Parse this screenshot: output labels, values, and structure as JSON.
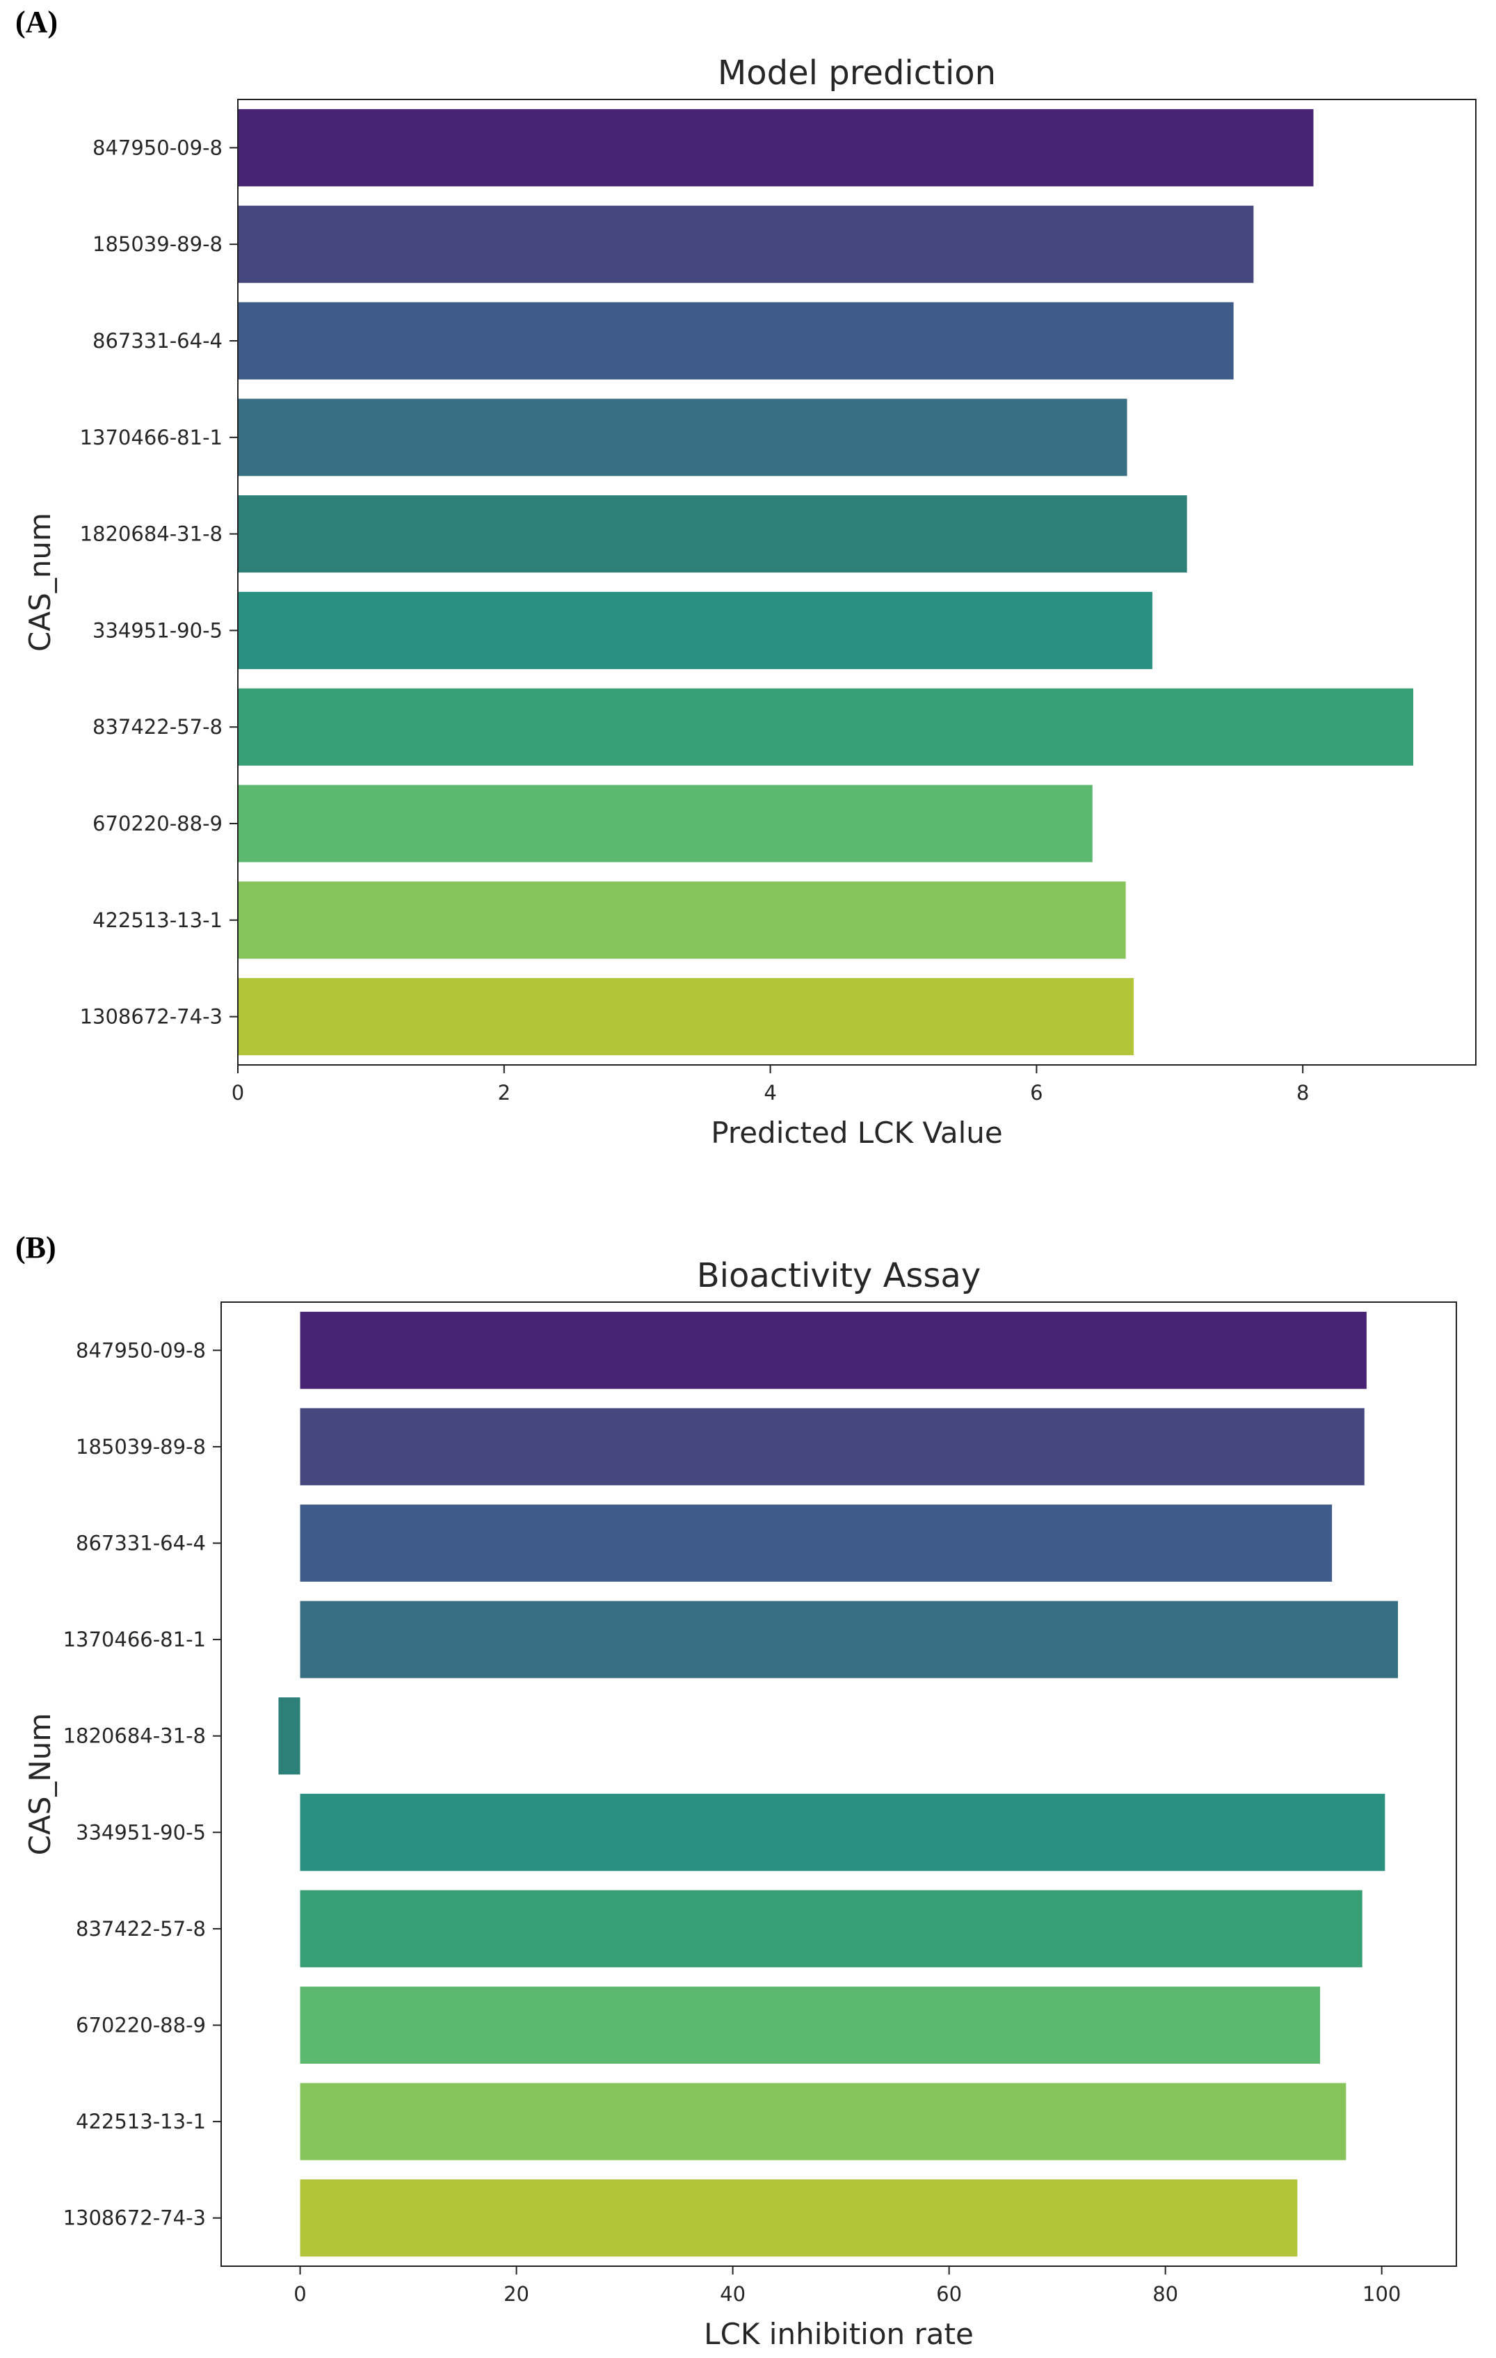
{
  "panels": {
    "a": "(A)",
    "b": "(B)"
  },
  "colors": [
    "#482475",
    "#46477f",
    "#3e5b8a",
    "#376e82",
    "#2d8078",
    "#2a9080",
    "#389f75",
    "#5cb76f",
    "#87c35b",
    "#b2c43a"
  ],
  "chart_data": [
    {
      "type": "bar",
      "orientation": "horizontal",
      "title": "Model prediction",
      "xlabel": "Predicted LCK Value",
      "ylabel": "CAS_num",
      "categories": [
        "847950-09-8",
        "185039-89-8",
        "867331-64-4",
        "1370466-81-1",
        "1820684-31-8",
        "334951-90-5",
        "837422-57-8",
        "670220-88-9",
        "422513-13-1",
        "1308672-74-3"
      ],
      "values": [
        8.08,
        7.63,
        7.48,
        6.68,
        7.13,
        6.87,
        8.83,
        6.42,
        6.67,
        6.73
      ],
      "xlim": [
        0,
        9.3
      ],
      "xticks": [
        0,
        2,
        4,
        6,
        8
      ],
      "grid": false
    },
    {
      "type": "bar",
      "orientation": "horizontal",
      "title": "Bioactivity Assay",
      "xlabel": "LCK inhibition rate",
      "ylabel": "CAS_Num",
      "categories": [
        "847950-09-8",
        "185039-89-8",
        "867331-64-4",
        "1370466-81-1",
        "1820684-31-8",
        "334951-90-5",
        "837422-57-8",
        "670220-88-9",
        "422513-13-1",
        "1308672-74-3"
      ],
      "values": [
        98.6,
        98.4,
        95.4,
        101.5,
        -2.0,
        100.3,
        98.2,
        94.3,
        96.7,
        92.2
      ],
      "xlim": [
        -7.3,
        106.9
      ],
      "xticks": [
        0,
        20,
        40,
        60,
        80,
        100
      ],
      "grid": false
    }
  ]
}
